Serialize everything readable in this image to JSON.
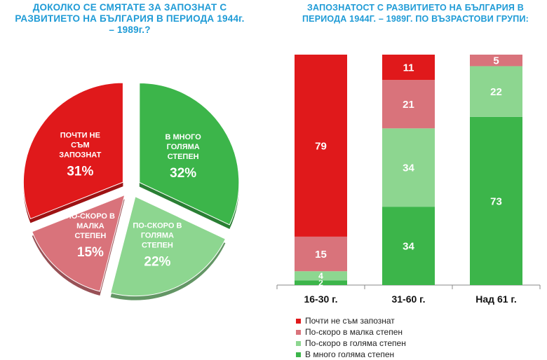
{
  "pie": {
    "title": "ДОКОЛКО СЕ СМЯТАТЕ ЗА ЗАПОЗНАТ С РАЗВИТИЕТО НА БЪЛГАРИЯ В ПЕРИОДА 1944г. – 1989г.?"
  },
  "bars": {
    "title": "ЗАПОЗНАТОСТ С РАЗВИТИЕТО НА БЪЛГАРИЯ В ПЕРИОДА 1944Г. – 1989Г. ПО ВЪЗРАСТОВИ ГРУПИ:"
  },
  "colors": {
    "red": "#e0191b",
    "pink": "#d9737b",
    "light_green": "#8dd690",
    "green": "#3cb54a"
  },
  "chart_data": [
    {
      "type": "pie",
      "title": "ДОКОЛКО СЕ СМЯТАТЕ ЗА ЗАПОЗНАТ С РАЗВИТИЕТО НА БЪЛГАРИЯ В ПЕРИОДА 1944г. – 1989г.?",
      "slices": [
        {
          "label": "В МНОГО ГОЛЯМА СТЕПЕН",
          "value": 32,
          "display": "32%",
          "color": "#3cb54a"
        },
        {
          "label": "ПО-СКОРО В ГОЛЯМА СТЕПЕН",
          "value": 22,
          "display": "22%",
          "color": "#8dd690"
        },
        {
          "label": "ПО-СКОРО В МАЛКА СТЕПЕН",
          "value": 15,
          "display": "15%",
          "color": "#d9737b"
        },
        {
          "label": "ПОЧТИ НЕ СЪМ ЗАПОЗНАТ",
          "value": 31,
          "display": "31%",
          "color": "#e0191b"
        }
      ]
    },
    {
      "type": "bar",
      "stacked": true,
      "title": "ЗАПОЗНАТОСТ С РАЗВИТИЕТО НА БЪЛГАРИЯ В ПЕРИОДА 1944Г. – 1989Г. ПО ВЪЗРАСТОВИ ГРУПИ:",
      "categories": [
        "16-30 г.",
        "31-60 г.",
        "Над 61 г."
      ],
      "ylim": [
        0,
        100
      ],
      "series": [
        {
          "name": "В много голяма степен",
          "values": [
            2,
            34,
            73
          ],
          "color": "#3cb54a"
        },
        {
          "name": "По-скоро в голяма степен",
          "values": [
            4,
            34,
            22
          ],
          "color": "#8dd690"
        },
        {
          "name": "По-скоро в малка степен",
          "values": [
            15,
            21,
            5
          ],
          "color": "#d9737b"
        },
        {
          "name": "Почти не съм запознат",
          "values": [
            79,
            11,
            0
          ],
          "color": "#e0191b"
        }
      ],
      "legend_position": "bottom",
      "legend_order": [
        "Почти не съм запознат",
        "По-скоро в малка степен",
        "По-скоро в голяма степен",
        "В много голяма степен"
      ]
    }
  ]
}
